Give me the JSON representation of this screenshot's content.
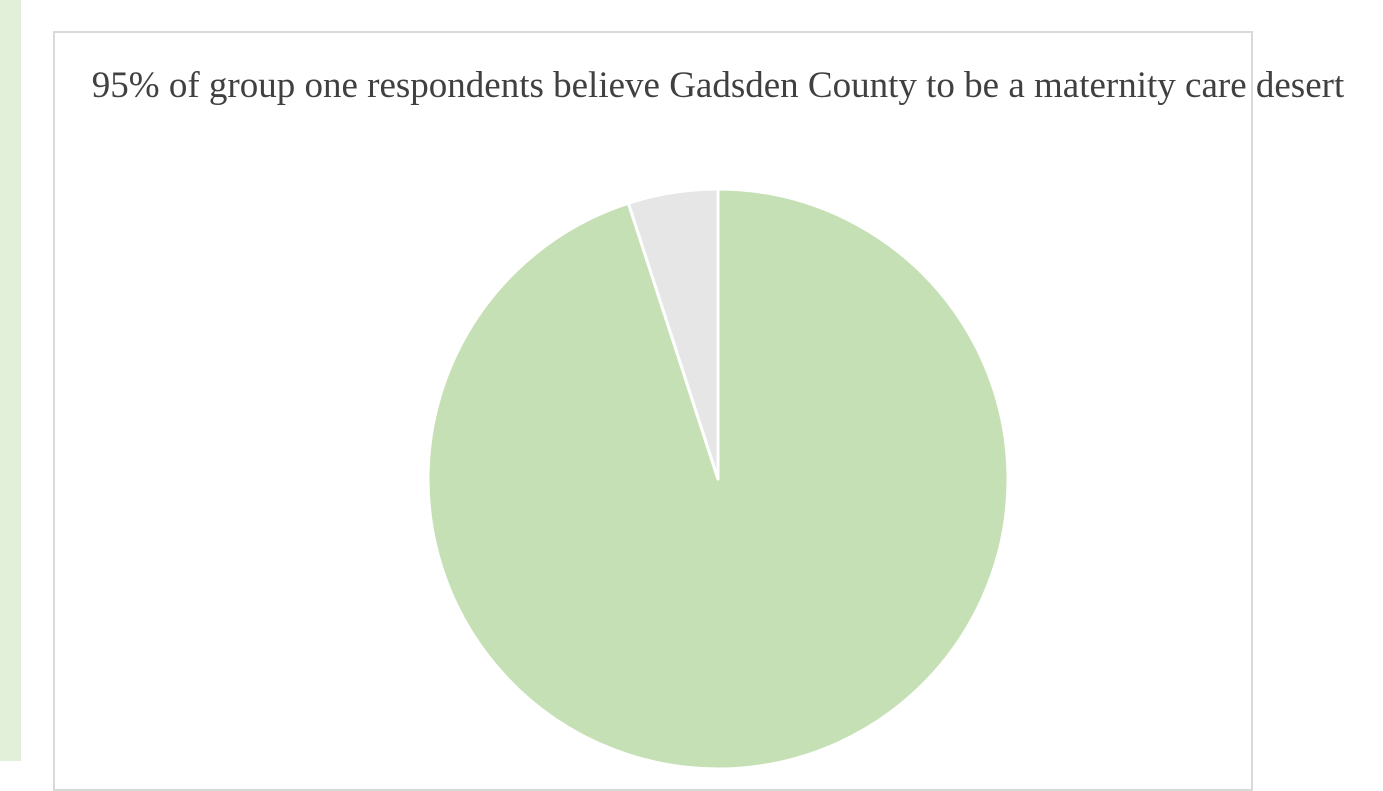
{
  "chart_data": {
    "type": "pie",
    "title": "95% of group one respondents believe Gadsden County to be a maternity care desert",
    "values": [
      95,
      5
    ],
    "colors": [
      "#c5e0b4",
      "#e7e6e6"
    ],
    "start_angle": "12 o'clock",
    "direction": "clockwise",
    "slice_border_color": "#ffffff",
    "legend": "none"
  },
  "theme": {
    "side_strip_color": "#e2efd9",
    "frame_border_color": "#d9d9d9"
  }
}
